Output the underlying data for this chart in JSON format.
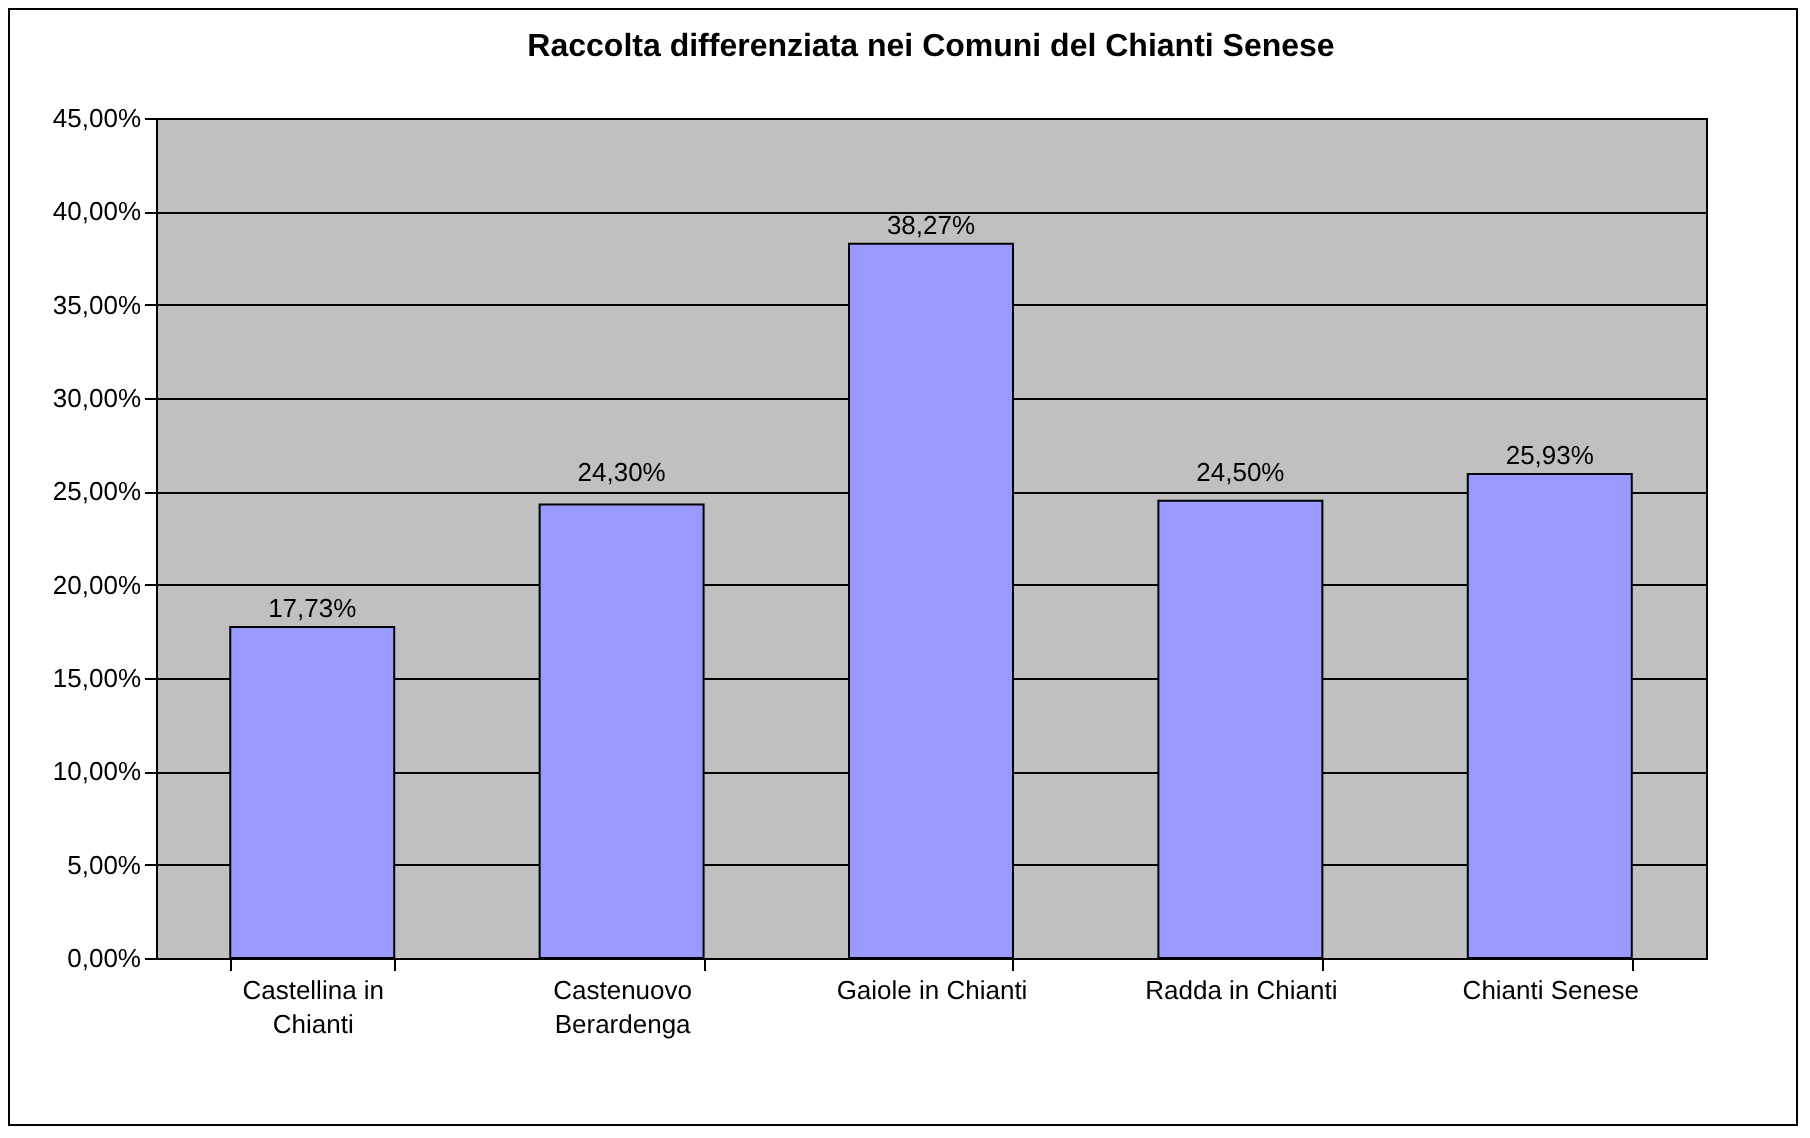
{
  "chart_data": {
    "type": "bar",
    "title": "Raccolta differenziata nei Comuni del Chianti Senese",
    "categories": [
      "Castellina in Chianti",
      "Castenuovo Berardenga",
      "Gaiole in Chianti",
      "Radda in Chianti",
      "Chianti Senese"
    ],
    "values": [
      17.73,
      24.3,
      38.27,
      24.5,
      25.93
    ],
    "value_labels": [
      "17,73%",
      "24,30%",
      "38,27%",
      "24,50%",
      "25,93%"
    ],
    "color": "#9999ff",
    "ylim": [
      0,
      45
    ],
    "yticks": [
      {
        "value": 0,
        "label": "0,00%"
      },
      {
        "value": 5,
        "label": "5,00%"
      },
      {
        "value": 10,
        "label": "10,00%"
      },
      {
        "value": 15,
        "label": "15,00%"
      },
      {
        "value": 20,
        "label": "20,00%"
      },
      {
        "value": 25,
        "label": "25,00%"
      },
      {
        "value": 30,
        "label": "30,00%"
      },
      {
        "value": 35,
        "label": "35,00%"
      },
      {
        "value": 40,
        "label": "40,00%"
      },
      {
        "value": 45,
        "label": "45,00%"
      }
    ],
    "grid": "y"
  }
}
